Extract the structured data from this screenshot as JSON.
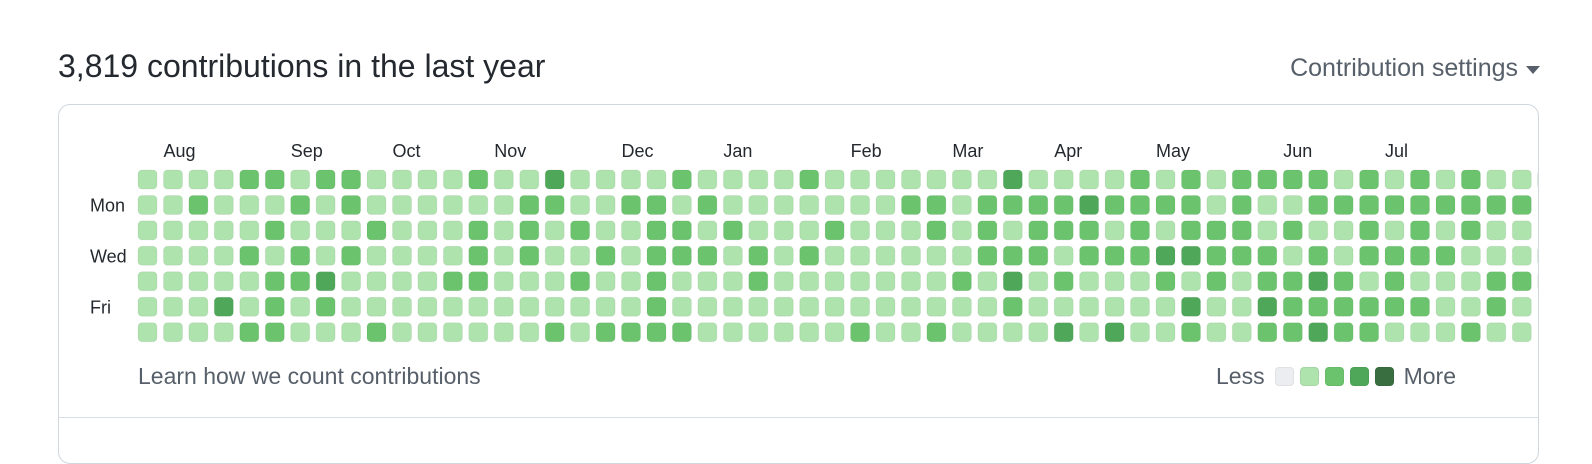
{
  "heading": "3,819 contributions in the last year",
  "settings": {
    "label": "Contribution settings",
    "icon": "caret-down-icon"
  },
  "graph": {
    "months": [
      "Aug",
      "Sep",
      "Oct",
      "Nov",
      "Dec",
      "Jan",
      "Feb",
      "Mar",
      "Apr",
      "May",
      "Jun",
      "Jul"
    ],
    "month_start_weeks": [
      1,
      6,
      10,
      14,
      19,
      23,
      28,
      32,
      36,
      40,
      45,
      49
    ],
    "day_labels": [
      "",
      "Mon",
      "",
      "Wed",
      "",
      "Fri",
      ""
    ],
    "colors": [
      "#ebedf0",
      "#aee3ad",
      "#6bc46d",
      "#4fa85a",
      "#386e40"
    ],
    "levels": [
      "11112212211112113111121111211111113111121212222121212112",
      "1121112121111112211221211111112212222322221211222222222",
      "1111121112111212121122121112111212122212122212112121211",
      "11112121211112121121222121211111122212223322212122221112",
      "11111223111122111211211121111111213121112121223212111221",
      "1113121211111111111121111111111111211111131132222221121",
      "1111221112111111212222111111211211113131121122322111211"
    ],
    "more_label": "More",
    "less_label": "Less"
  },
  "footer": {
    "learn_link": "Learn how we count contributions"
  }
}
